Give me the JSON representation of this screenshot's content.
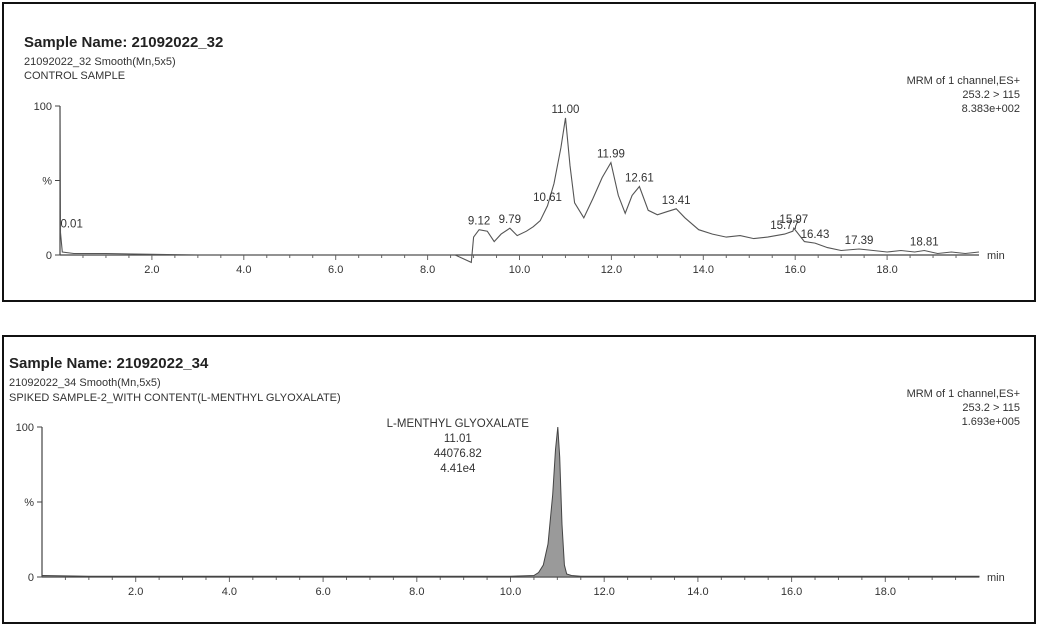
{
  "chart_data": [
    {
      "type": "line",
      "title": "Sample Name: 21092022_32",
      "subtitle": "21092022_32 Smooth(Mn,5x5)",
      "description": "CONTROL SAMPLE",
      "info": [
        "MRM of 1 channel,ES+",
        "253.2 > 115",
        "8.383e+002"
      ],
      "xlabel": "min",
      "ylabel": "%",
      "xlim": [
        0,
        20
      ],
      "ylim": [
        0,
        100
      ],
      "x_ticks": [
        "2.0",
        "4.0",
        "6.0",
        "8.0",
        "10.0",
        "12.0",
        "14.0",
        "16.0",
        "18.0"
      ],
      "y_ticks": [
        "0",
        "%",
        "100"
      ],
      "x": [
        0,
        0.01,
        0.05,
        0.3,
        1,
        2,
        3,
        4,
        5,
        6,
        7,
        8,
        8.6,
        8.95,
        9.0,
        9.12,
        9.3,
        9.45,
        9.6,
        9.79,
        9.95,
        10.15,
        10.3,
        10.45,
        10.61,
        10.75,
        10.9,
        11.0,
        11.1,
        11.2,
        11.4,
        11.6,
        11.8,
        11.99,
        12.15,
        12.3,
        12.45,
        12.61,
        12.8,
        13.0,
        13.2,
        13.41,
        13.6,
        13.9,
        14.2,
        14.5,
        14.8,
        15.1,
        15.4,
        15.77,
        15.95,
        15.97,
        16.2,
        16.43,
        16.7,
        17.0,
        17.39,
        17.7,
        18.0,
        18.3,
        18.6,
        18.81,
        19.1,
        19.4,
        19.7,
        20.0
      ],
      "y": [
        98,
        15,
        2,
        1,
        1,
        0.5,
        0,
        0,
        0,
        0,
        0,
        0,
        0,
        -5,
        12,
        17,
        16,
        9,
        14,
        18,
        13,
        16,
        19,
        23,
        33,
        48,
        72,
        92,
        60,
        35,
        25,
        38,
        52,
        62,
        40,
        28,
        40,
        46,
        30,
        27,
        29,
        31,
        25,
        17,
        14,
        12,
        13,
        11,
        12,
        14,
        16,
        18,
        9,
        8,
        5,
        3,
        4,
        3,
        2,
        3,
        2,
        3,
        1,
        2,
        1,
        2
      ],
      "peak_labels": [
        {
          "x": 0.01,
          "y": 15,
          "label": "0.01"
        },
        {
          "x": 9.12,
          "y": 17,
          "label": "9.12"
        },
        {
          "x": 9.79,
          "y": 18,
          "label": "9.79"
        },
        {
          "x": 10.61,
          "y": 33,
          "label": "10.61"
        },
        {
          "x": 11.0,
          "y": 92,
          "label": "11.00"
        },
        {
          "x": 11.99,
          "y": 62,
          "label": "11.99"
        },
        {
          "x": 12.61,
          "y": 46,
          "label": "12.61"
        },
        {
          "x": 13.41,
          "y": 31,
          "label": "13.41"
        },
        {
          "x": 15.77,
          "y": 14,
          "label": "15.77"
        },
        {
          "x": 15.97,
          "y": 18,
          "label": "15.97"
        },
        {
          "x": 16.43,
          "y": 8,
          "label": "16.43"
        },
        {
          "x": 17.39,
          "y": 4,
          "label": "17.39"
        },
        {
          "x": 18.81,
          "y": 3,
          "label": "18.81"
        }
      ]
    },
    {
      "type": "area",
      "title": "Sample Name: 21092022_34",
      "subtitle": "21092022_34 Smooth(Mn,5x5)",
      "description": "SPIKED SAMPLE-2_WITH CONTENT(L-MENTHYL GLYOXALATE)",
      "info": [
        "MRM of 1 channel,ES+",
        "253.2 > 115",
        "1.693e+005"
      ],
      "xlabel": "min",
      "ylabel": "%",
      "xlim": [
        0,
        20
      ],
      "ylim": [
        0,
        100
      ],
      "x_ticks": [
        "2.0",
        "4.0",
        "6.0",
        "8.0",
        "10.0",
        "12.0",
        "14.0",
        "16.0",
        "18.0"
      ],
      "y_ticks": [
        "0",
        "%",
        "100"
      ],
      "x": [
        0,
        1,
        3,
        5,
        7,
        9,
        10.0,
        10.5,
        10.6,
        10.7,
        10.8,
        10.9,
        10.96,
        11.01,
        11.05,
        11.1,
        11.15,
        11.2,
        11.3,
        11.5,
        12,
        14,
        16,
        18,
        20
      ],
      "y": [
        1,
        0.5,
        0.5,
        0.5,
        0.5,
        0.5,
        0.5,
        1,
        3,
        8,
        22,
        55,
        85,
        100,
        80,
        35,
        8,
        2,
        1,
        0.5,
        0.5,
        0.5,
        0.5,
        0.5,
        0.5
      ],
      "peak_annotation": {
        "x": 11.01,
        "lines": [
          "L-MENTHYL GLYOXALATE",
          "11.01",
          "44076.82",
          "4.41e4"
        ]
      }
    }
  ]
}
